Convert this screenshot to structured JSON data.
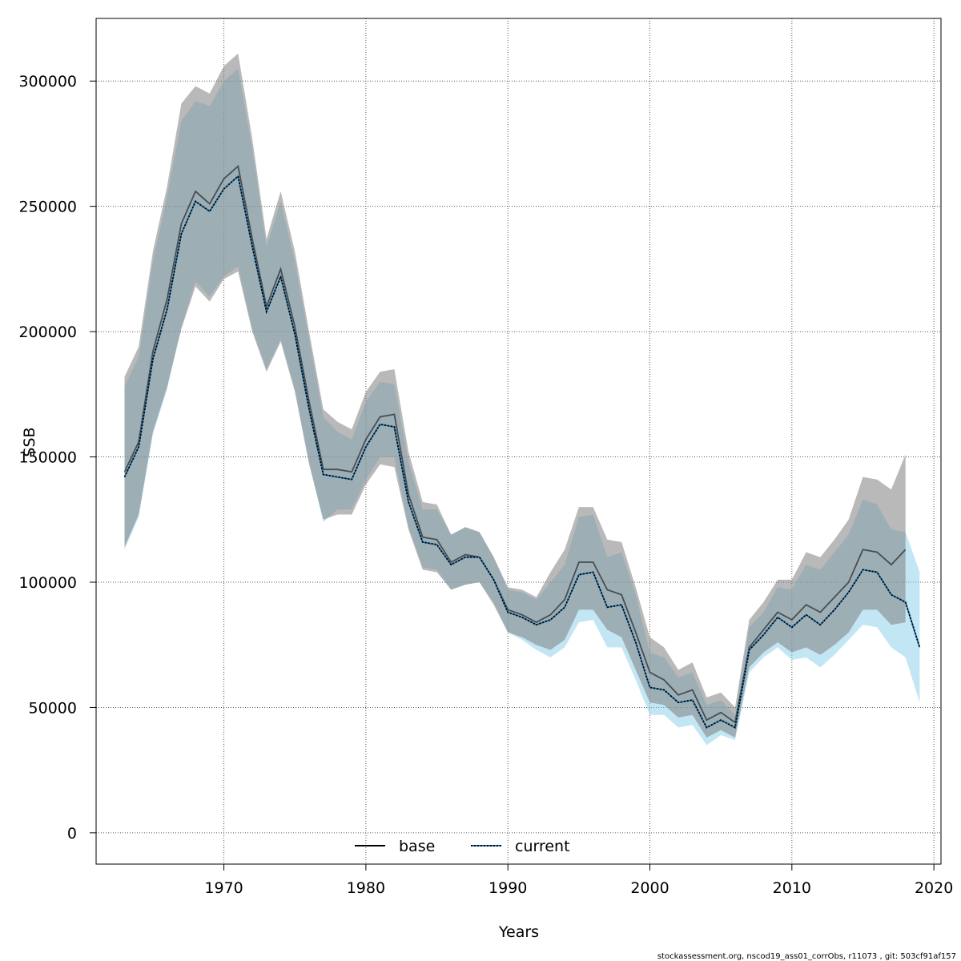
{
  "chart_data": {
    "type": "line",
    "title": "",
    "xlabel": "Years",
    "ylabel": "SSB",
    "xlim": [
      1961,
      2020.5
    ],
    "ylim": [
      -12500,
      325000
    ],
    "x_ticks": [
      1970,
      1980,
      1990,
      2000,
      2010,
      2020
    ],
    "y_ticks": [
      0,
      50000,
      100000,
      150000,
      200000,
      250000,
      300000
    ],
    "x_tick_labels": [
      "1970",
      "1980",
      "1990",
      "2000",
      "2010",
      "2020"
    ],
    "y_tick_labels": [
      "0",
      "50000",
      "100000",
      "150000",
      "200000",
      "250000",
      "300000"
    ],
    "grid": true,
    "legend_position": "bottom-center",
    "colors": {
      "base_band": "#bebebe",
      "current_band": "#87ceeb",
      "base_line": "#000000",
      "current_line": "#000000",
      "current_line_dash": "#1f77b4"
    },
    "series": [
      {
        "name": "base",
        "style": "solid",
        "x": [
          1963,
          1964,
          1965,
          1966,
          1967,
          1968,
          1969,
          1970,
          1971,
          1972,
          1973,
          1974,
          1975,
          1976,
          1977,
          1978,
          1979,
          1980,
          1981,
          1982,
          1983,
          1984,
          1985,
          1986,
          1987,
          1988,
          1989,
          1990,
          1991,
          1992,
          1993,
          1994,
          1995,
          1996,
          1997,
          1998,
          1999,
          2000,
          2001,
          2002,
          2003,
          2004,
          2005,
          2006,
          2007,
          2008,
          2009,
          2010,
          2011,
          2012,
          2013,
          2014,
          2015,
          2016,
          2017,
          2018
        ],
        "values": [
          144000,
          156000,
          192000,
          213000,
          243000,
          256000,
          251000,
          261000,
          266000,
          237000,
          210000,
          225000,
          202000,
          172000,
          145000,
          145000,
          144000,
          157000,
          166000,
          167000,
          135000,
          118000,
          117000,
          108000,
          111000,
          110000,
          101000,
          89000,
          87000,
          84000,
          87000,
          93000,
          108000,
          108000,
          97000,
          95000,
          80000,
          64000,
          61000,
          55000,
          57000,
          45000,
          48000,
          44000,
          74000,
          81000,
          88000,
          85000,
          91000,
          88000,
          94000,
          100000,
          113000,
          112000,
          107000,
          113000
        ],
        "lower": [
          114000,
          127000,
          160000,
          178000,
          201000,
          218000,
          212000,
          221000,
          224000,
          200000,
          184000,
          196000,
          176000,
          147000,
          125000,
          127000,
          127000,
          139000,
          147000,
          146000,
          121000,
          105000,
          104000,
          97000,
          99000,
          100000,
          91000,
          80000,
          78000,
          75000,
          73000,
          77000,
          89000,
          89000,
          81000,
          78000,
          65000,
          52000,
          51000,
          46000,
          47000,
          38000,
          41000,
          38000,
          66000,
          72000,
          76000,
          72000,
          74000,
          71000,
          75000,
          80000,
          89000,
          89000,
          83000,
          84000
        ],
        "upper": [
          182000,
          194000,
          232000,
          258000,
          291000,
          298000,
          295000,
          306000,
          311000,
          277000,
          237000,
          256000,
          232000,
          200000,
          169000,
          164000,
          161000,
          176000,
          184000,
          185000,
          152000,
          132000,
          131000,
          119000,
          122000,
          120000,
          110000,
          98000,
          97000,
          94000,
          104000,
          113000,
          130000,
          130000,
          117000,
          116000,
          98000,
          78000,
          74000,
          65000,
          68000,
          54000,
          56000,
          50000,
          85000,
          92000,
          101000,
          101000,
          112000,
          110000,
          117000,
          125000,
          142000,
          141000,
          137000,
          151000
        ]
      },
      {
        "name": "current",
        "style": "dotted",
        "x": [
          1963,
          1964,
          1965,
          1966,
          1967,
          1968,
          1969,
          1970,
          1971,
          1972,
          1973,
          1974,
          1975,
          1976,
          1977,
          1978,
          1979,
          1980,
          1981,
          1982,
          1983,
          1984,
          1985,
          1986,
          1987,
          1988,
          1989,
          1990,
          1991,
          1992,
          1993,
          1994,
          1995,
          1996,
          1997,
          1998,
          1999,
          2000,
          2001,
          2002,
          2003,
          2004,
          2005,
          2006,
          2007,
          2008,
          2009,
          2010,
          2011,
          2012,
          2013,
          2014,
          2015,
          2016,
          2017,
          2018,
          2019
        ],
        "values": [
          142000,
          154000,
          189000,
          209000,
          239000,
          252000,
          248000,
          257000,
          262000,
          234000,
          208000,
          222000,
          199000,
          169000,
          143000,
          142000,
          141000,
          154000,
          163000,
          162000,
          132000,
          116000,
          115000,
          107000,
          110000,
          110000,
          101000,
          88000,
          86000,
          83000,
          85000,
          90000,
          103000,
          104000,
          90000,
          91000,
          76000,
          58000,
          57000,
          52000,
          53000,
          42000,
          45000,
          42000,
          73000,
          79000,
          86000,
          82000,
          87000,
          83000,
          89000,
          96000,
          105000,
          104000,
          95000,
          92000,
          74000
        ],
        "lower": [
          113000,
          126000,
          159000,
          177000,
          202000,
          220000,
          214000,
          222000,
          226000,
          201000,
          185000,
          197000,
          177000,
          148000,
          124000,
          129000,
          129000,
          141000,
          150000,
          150000,
          122000,
          106000,
          105000,
          97000,
          99000,
          100000,
          92000,
          80000,
          77000,
          73000,
          70000,
          74000,
          84000,
          85000,
          74000,
          74000,
          61000,
          47000,
          47000,
          42000,
          43000,
          35000,
          39000,
          37000,
          64000,
          70000,
          74000,
          69000,
          70000,
          66000,
          71000,
          77000,
          83000,
          82000,
          74000,
          70000,
          52000
        ],
        "upper": [
          178000,
          190000,
          228000,
          254000,
          284000,
          292000,
          290000,
          300000,
          305000,
          273000,
          234000,
          252000,
          228000,
          197000,
          166000,
          160000,
          157000,
          172000,
          180000,
          179000,
          148000,
          129000,
          129000,
          119000,
          122000,
          120000,
          110000,
          97000,
          96000,
          93000,
          100000,
          107000,
          126000,
          127000,
          110000,
          112000,
          95000,
          72000,
          70000,
          62000,
          64000,
          51000,
          53000,
          47000,
          82000,
          88000,
          98000,
          97000,
          107000,
          105000,
          112000,
          119000,
          133000,
          131000,
          121000,
          120000,
          104000
        ]
      }
    ],
    "footer": "stockassessment.org, nscod19_ass01_corrObs, r11073 , git: 503cf91af157"
  }
}
